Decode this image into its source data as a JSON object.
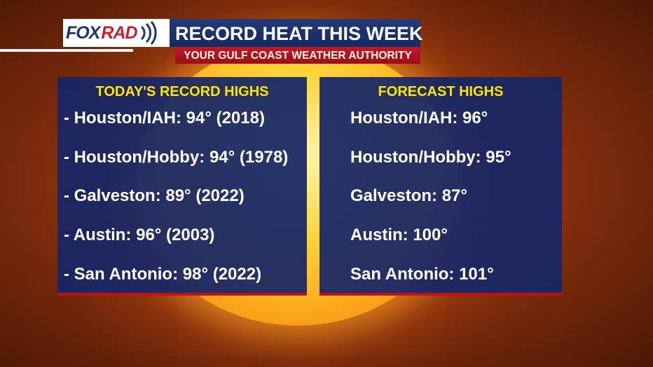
{
  "header": {
    "logo_fox": "FOX",
    "logo_rad": "RAD",
    "title": "RECORD HEAT THIS WEEK",
    "subtitle": "YOUR GULF COAST WEATHER AUTHORITY"
  },
  "left_panel": {
    "heading": "TODAY'S RECORD HIGHS",
    "rows": [
      "- Houston/IAH: 94° (2018)",
      "- Houston/Hobby: 94° (1978)",
      "- Galveston: 89° (2022)",
      "- Austin: 96° (2003)",
      "- San Antonio: 98° (2022)"
    ]
  },
  "right_panel": {
    "heading": "FORECAST HIGHS",
    "rows": [
      "Houston/IAH: 96°",
      "Houston/Hobby: 95°",
      "Galveston: 87°",
      "Austin: 100°",
      "San Antonio: 101°"
    ]
  },
  "colors": {
    "panel": "#162666",
    "heading": "#ffe600",
    "accent_red": "#c41826",
    "sun_core": "#ffd43a"
  }
}
